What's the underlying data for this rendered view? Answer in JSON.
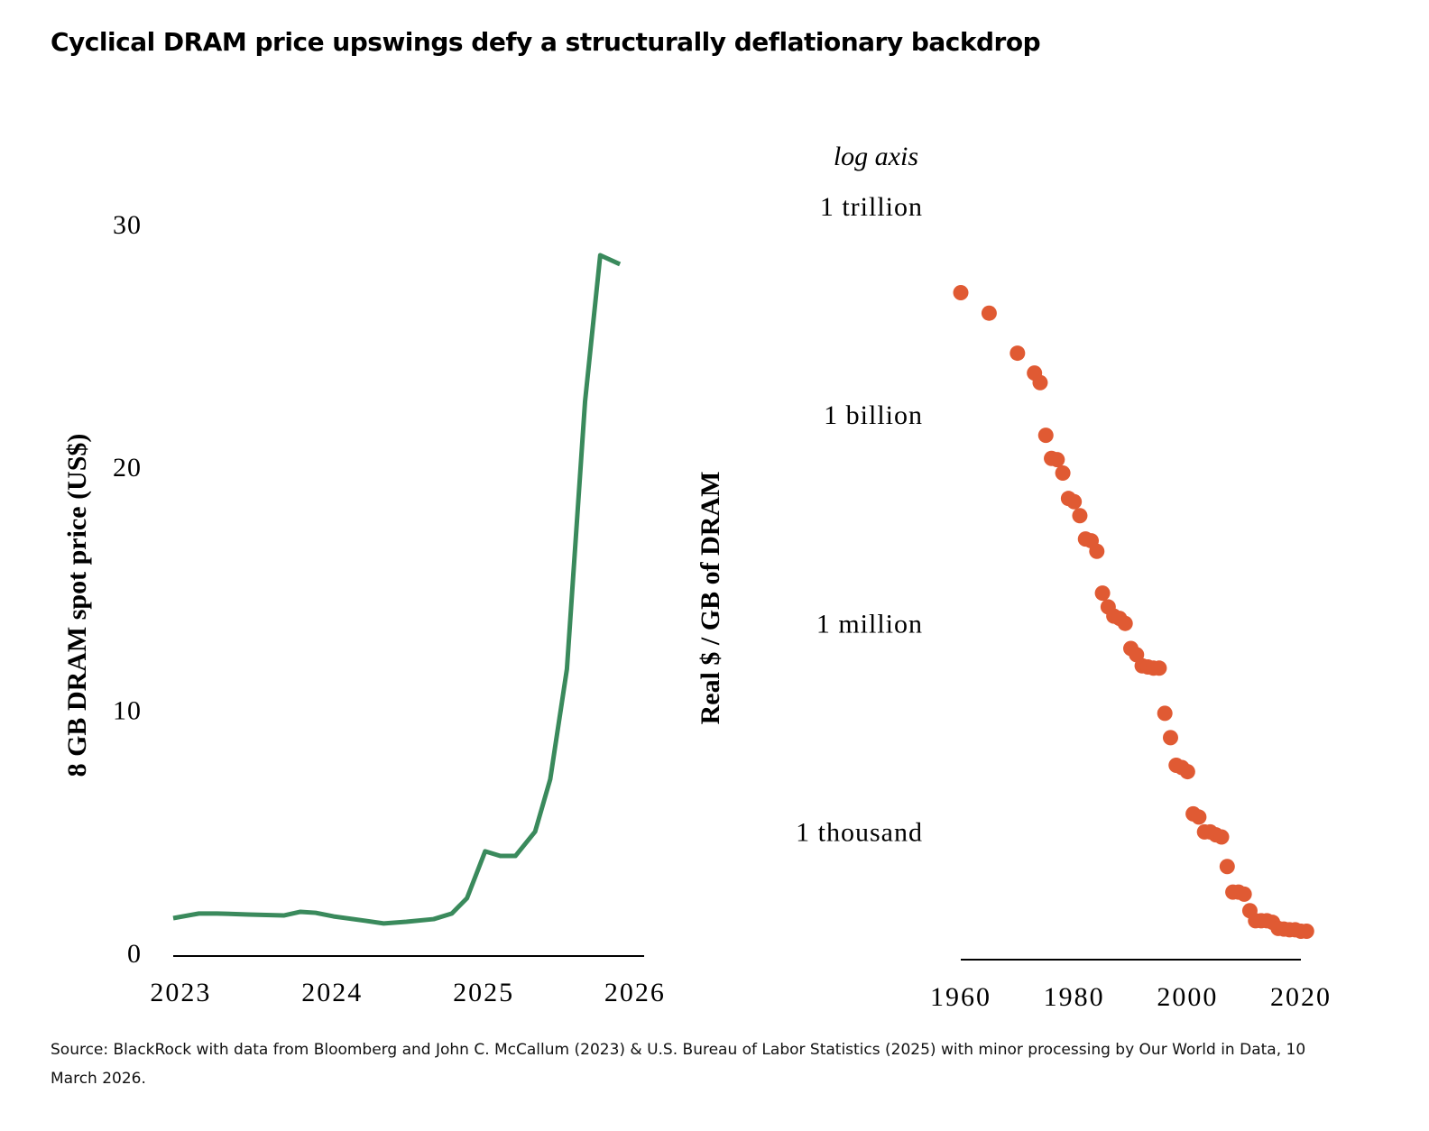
{
  "title": "Cyclical DRAM price upswings defy a structurally deflationary backdrop",
  "source": "Source: BlackRock with data from Bloomberg and John C. McCallum (2023) & U.S. Bureau of Labor Statistics (2025) with minor processing by Our World in Data, 10 March 2026.",
  "chart_data": [
    {
      "type": "line",
      "ylabel": "8 GB DRAM spot price (US$)",
      "color": "#3a8a5c",
      "x": [
        2022.95,
        2023.12,
        2023.24,
        2023.45,
        2023.68,
        2023.79,
        2023.89,
        2024.01,
        2024.22,
        2024.34,
        2024.49,
        2024.67,
        2024.79,
        2024.89,
        2025.01,
        2025.11,
        2025.21,
        2025.34,
        2025.44,
        2025.55,
        2025.67,
        2025.77,
        2025.9
      ],
      "values": [
        1.56,
        1.75,
        1.75,
        1.71,
        1.67,
        1.82,
        1.78,
        1.63,
        1.45,
        1.34,
        1.41,
        1.52,
        1.75,
        2.38,
        4.31,
        4.12,
        4.12,
        5.12,
        7.28,
        11.81,
        22.84,
        28.85,
        28.48
      ],
      "xlim": [
        2022.95,
        2026.06
      ],
      "xticks": [
        2023,
        2024,
        2025,
        2026
      ],
      "ylim": [
        0,
        30
      ],
      "yticks": [
        0,
        10,
        20,
        30
      ]
    },
    {
      "type": "scatter",
      "ylabel": "Real $ / GB of DRAM",
      "annotation": "log axis",
      "log_scale": true,
      "color": "#e05a33",
      "x": [
        1960,
        1965,
        1970,
        1973,
        1974,
        1975,
        1976,
        1977,
        1978,
        1979,
        1980,
        1981,
        1982,
        1983,
        1984,
        1985,
        1986,
        1987,
        1988,
        1989,
        1990,
        1991,
        1992,
        1993,
        1994,
        1995,
        1996,
        1997,
        1998,
        1999,
        2000,
        2001,
        2002,
        2003,
        2004,
        2005,
        2006,
        2007,
        2008,
        2009,
        2010,
        2011,
        2012,
        2013,
        2014,
        2015,
        2016,
        2017,
        2018,
        2019,
        2020,
        2021
      ],
      "values": [
        63000000000.0,
        32000000000.0,
        8500000000.0,
        4400000000.0,
        3200000000.0,
        560000000.0,
        260000000.0,
        250000000.0,
        160000000.0,
        69000000.0,
        62000000.0,
        39000000.0,
        18000000.0,
        17000000.0,
        12000000.0,
        3000000.0,
        1900000.0,
        1400000.0,
        1300000.0,
        1100000.0,
        480000.0,
        390000.0,
        270000.0,
        260000.0,
        250000.0,
        250000.0,
        56000.0,
        25000.0,
        10000.0,
        9300,
        8100,
        2000,
        1800,
        1100,
        1100,
        1000,
        930,
        350,
        150,
        150,
        140,
        81,
        58,
        58,
        58,
        55,
        45,
        44,
        43,
        43,
        41,
        41
      ],
      "xlim": [
        1960,
        2020
      ],
      "xticks": [
        1960,
        1980,
        2000,
        2020
      ],
      "ylim": [
        16,
        1000000000000
      ],
      "yticks": [
        {
          "value": 1000,
          "label": "1 thousand"
        },
        {
          "value": 1000000,
          "label": "1 million"
        },
        {
          "value": 1000000000,
          "label": "1 billion"
        },
        {
          "value": 1000000000000,
          "label": "1 trillion"
        }
      ]
    }
  ]
}
